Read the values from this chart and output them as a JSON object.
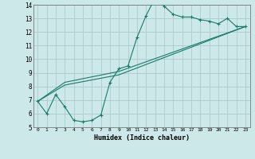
{
  "title": "",
  "xlabel": "Humidex (Indice chaleur)",
  "bg_color": "#cce8e8",
  "grid_color": "#aacccc",
  "line_color": "#1a7a6a",
  "xlim": [
    -0.5,
    23.5
  ],
  "ylim": [
    5,
    14
  ],
  "xticks": [
    0,
    1,
    2,
    3,
    4,
    5,
    6,
    7,
    8,
    9,
    10,
    11,
    12,
    13,
    14,
    15,
    16,
    17,
    18,
    19,
    20,
    21,
    22,
    23
  ],
  "yticks": [
    5,
    6,
    7,
    8,
    9,
    10,
    11,
    12,
    13,
    14
  ],
  "line1_x": [
    0,
    1,
    2,
    3,
    4,
    5,
    6,
    7,
    8,
    9,
    10,
    11,
    12,
    13,
    14,
    15,
    16,
    17,
    18,
    19,
    20,
    21,
    22,
    23
  ],
  "line1_y": [
    6.9,
    6.0,
    7.4,
    6.5,
    5.5,
    5.4,
    5.5,
    5.9,
    8.3,
    9.3,
    9.5,
    11.6,
    13.2,
    14.5,
    13.9,
    13.3,
    13.1,
    13.1,
    12.9,
    12.8,
    12.6,
    13.0,
    12.4,
    12.4
  ],
  "line2_x": [
    0,
    3,
    9,
    23
  ],
  "line2_y": [
    6.9,
    8.3,
    9.1,
    12.4
  ],
  "line3_x": [
    0,
    3,
    9,
    23
  ],
  "line3_y": [
    6.9,
    8.1,
    8.85,
    12.4
  ],
  "xlabel_fontsize": 6,
  "tick_fontsize_x": 4.5,
  "tick_fontsize_y": 5.5
}
